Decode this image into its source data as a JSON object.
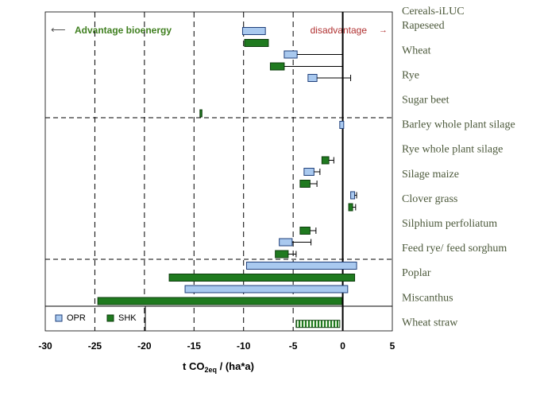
{
  "chart_data": {
    "type": "range-bar",
    "header_label": "Cereals-iLUC",
    "annotations": {
      "left": "Advantage bioenergy",
      "right": "disadvantage"
    },
    "x_label": {
      "main": "t CO",
      "sub": "2eq",
      "rest": " / (ha*a)"
    },
    "categories": [
      "Rapeseed",
      "Wheat",
      "Rye",
      "Sugar beet",
      "Barley whole plant silage",
      "Rye whole plant silage",
      "Silage maize",
      "Clover grass",
      "Silphium perfoliatum",
      "Feed rye/ feed sorghum",
      "Poplar",
      "Miscanthus",
      "Wheat straw"
    ],
    "series": [
      {
        "name": "OPR",
        "color": "#a9c9ef",
        "stroke": "#1f3f7a",
        "start": [
          -10.1,
          -5.9,
          -3.5,
          null,
          -0.3,
          null,
          -3.9,
          0.8,
          null,
          -6.4,
          -9.7,
          -15.9,
          null
        ],
        "end": [
          -7.8,
          -4.6,
          -2.6,
          null,
          0.1,
          null,
          -2.9,
          1.2,
          null,
          -5.1,
          1.4,
          0.5,
          null
        ],
        "whisker": [
          null,
          0,
          0.8,
          null,
          null,
          null,
          -2.3,
          1.4,
          null,
          -3.2,
          null,
          null,
          null
        ]
      },
      {
        "name": "SHK",
        "color": "#1f7a1f",
        "stroke": "#0d3d0d",
        "start": [
          -9.9,
          -7.3,
          null,
          -14.4,
          null,
          -2.1,
          -4.3,
          0.6,
          -4.3,
          -6.8,
          -17.5,
          -24.7,
          null
        ],
        "end": [
          -7.5,
          -5.9,
          null,
          -14.2,
          null,
          -1.4,
          -3.3,
          1.0,
          -3.3,
          -5.5,
          1.2,
          -0.1,
          null
        ],
        "whisker": [
          null,
          0,
          null,
          null,
          null,
          -0.9,
          -2.6,
          1.3,
          -2.7,
          -4.7,
          null,
          null,
          null
        ]
      },
      {
        "pattern": "hatch",
        "color": "#1f7a1f",
        "stroke": "#0d3d0d",
        "start": [
          null,
          null,
          null,
          null,
          null,
          null,
          null,
          null,
          null,
          null,
          null,
          null,
          -4.7
        ],
        "end": [
          null,
          null,
          null,
          null,
          null,
          null,
          null,
          null,
          null,
          null,
          null,
          null,
          -0.3
        ],
        "whisker": [
          null,
          null,
          null,
          null,
          null,
          null,
          null,
          null,
          null,
          null,
          null,
          null,
          null
        ]
      }
    ],
    "xlim": [
      -30,
      5
    ],
    "xticks": [
      -30,
      -25,
      -20,
      -15,
      -10,
      -5,
      0,
      5
    ],
    "grid": true
  }
}
